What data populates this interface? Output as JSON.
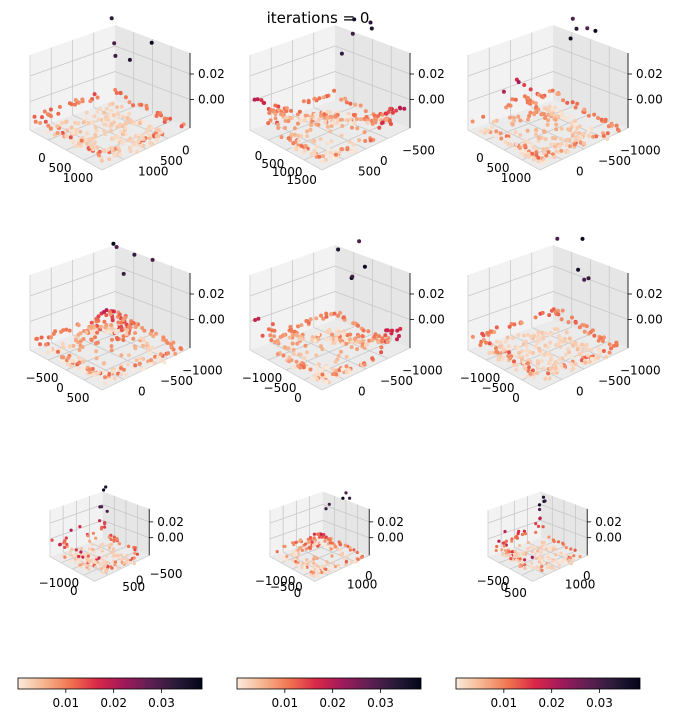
{
  "title": "iterations = 0",
  "colors": {
    "pane_left": "#f2f2f2",
    "pane_right": "#e6e6e6",
    "pane_floor": "#ebebeb",
    "grid": "#c8c8c8",
    "colormap": [
      "#faebdd",
      "#f6b48e",
      "#f0734f",
      "#d92847",
      "#a11a5b",
      "#611f53",
      "#2b1b3b",
      "#03051a"
    ]
  },
  "chart_data": [
    {
      "type": "scatter3d",
      "zticks": [
        "0.00",
        "0.02"
      ],
      "xticks": [
        "0",
        "500",
        "1000"
      ],
      "yticks": [
        "0",
        "500",
        "1000"
      ],
      "shape": "flat"
    },
    {
      "type": "scatter3d",
      "zticks": [
        "0.00",
        "0.02"
      ],
      "xticks": [
        "0",
        "500",
        "1000",
        "1500"
      ],
      "yticks": [
        "−500",
        "0",
        "500"
      ],
      "shape": "fold"
    },
    {
      "type": "scatter3d",
      "zticks": [
        "0.00",
        "0.02"
      ],
      "xticks": [
        "0",
        "500",
        "1000"
      ],
      "yticks": [
        "−1000",
        "−500",
        "0"
      ],
      "shape": "ridge"
    },
    {
      "type": "scatter3d",
      "zticks": [
        "0.00",
        "0.02"
      ],
      "xticks": [
        "−500",
        "0",
        "500"
      ],
      "yticks": [
        "−1000",
        "−500",
        "0"
      ],
      "shape": "peak"
    },
    {
      "type": "scatter3d",
      "zticks": [
        "0.00",
        "0.02"
      ],
      "xticks": [
        "−1000",
        "−500",
        "0"
      ],
      "yticks": [
        "−1000",
        "−500",
        "0"
      ],
      "shape": "fold"
    },
    {
      "type": "scatter3d",
      "zticks": [
        "0.00",
        "0.02"
      ],
      "xticks": [
        "−1000",
        "−500",
        "0"
      ],
      "yticks": [
        "−1000",
        "−500",
        "0"
      ],
      "shape": "flat"
    },
    {
      "type": "scatter3d",
      "zticks": [
        "0.00",
        "0.02"
      ],
      "xticks": [
        "−1000",
        "0"
      ],
      "yticks": [
        "−500",
        "0",
        "500"
      ],
      "shape": "box"
    },
    {
      "type": "scatter3d",
      "zticks": [
        "0.00",
        "0.02"
      ],
      "xticks": [
        "−1000",
        "−500",
        "0"
      ],
      "yticks": [
        "0",
        "1000"
      ],
      "shape": "peak"
    },
    {
      "type": "scatter3d",
      "zticks": [
        "0.00",
        "0.02"
      ],
      "xticks": [
        "−500",
        "0",
        "500"
      ],
      "yticks": [
        "0",
        "1000"
      ],
      "shape": "box"
    }
  ],
  "colorbars": [
    {
      "ticks": [
        {
          "label": "0.01",
          "frac": 0.26
        },
        {
          "label": "0.02",
          "frac": 0.52
        },
        {
          "label": "0.03",
          "frac": 0.78
        }
      ]
    },
    {
      "ticks": [
        {
          "label": "0.01",
          "frac": 0.26
        },
        {
          "label": "0.02",
          "frac": 0.52
        },
        {
          "label": "0.03",
          "frac": 0.78
        }
      ]
    },
    {
      "ticks": [
        {
          "label": "0.01",
          "frac": 0.26
        },
        {
          "label": "0.02",
          "frac": 0.52
        },
        {
          "label": "0.03",
          "frac": 0.78
        }
      ]
    }
  ]
}
